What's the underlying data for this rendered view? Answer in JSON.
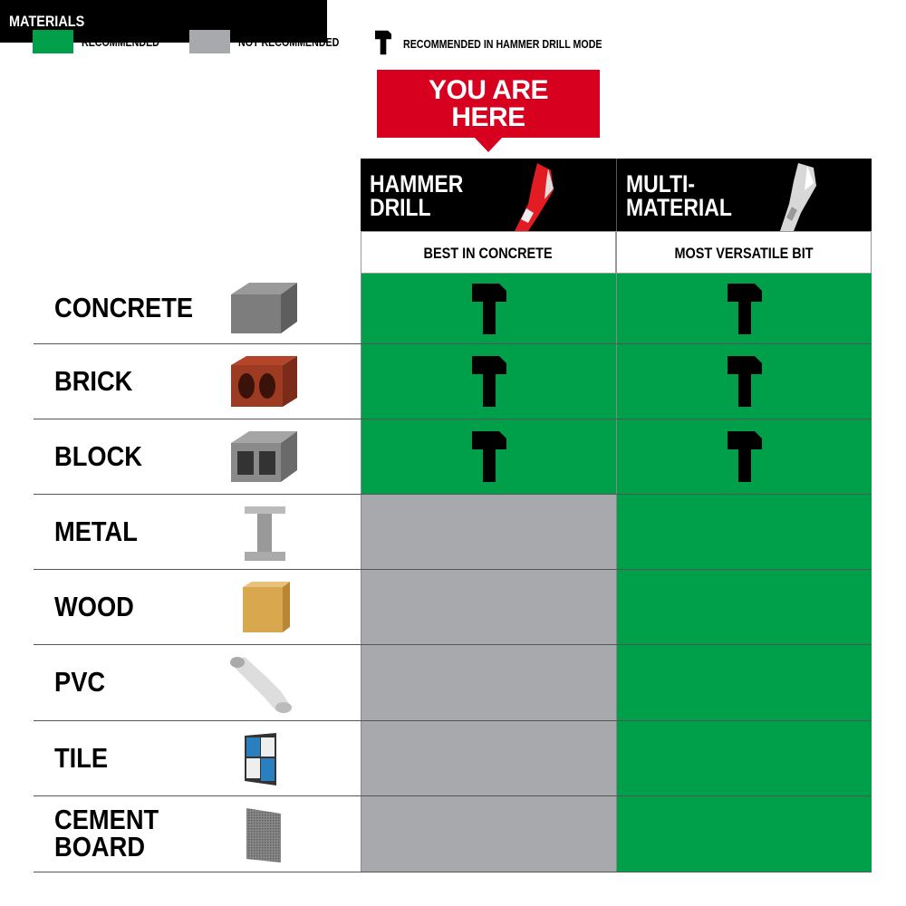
{
  "colors": {
    "recommended": "#00a04b",
    "not_recommended": "#a7a9ac",
    "accent": "#d7001e"
  },
  "legend": [
    {
      "label": "RECOMMENDED",
      "swatch": "recommended"
    },
    {
      "label": "NOT RECOMMENDED",
      "swatch": "not_recommended"
    },
    {
      "label": "RECOMMENDED IN HAMMER DRILL MODE",
      "icon": "hammer-icon"
    }
  ],
  "callout": {
    "line1": "YOU ARE",
    "line2": "HERE"
  },
  "columns": [
    {
      "title1": "HAMMER",
      "title2": "DRILL",
      "subtitle": "BEST IN CONCRETE",
      "image": "red-drill-bit"
    },
    {
      "title1": "MULTI-",
      "title2": "MATERIAL",
      "subtitle": "MOST VERSATILE BIT",
      "image": "silver-drill-bit"
    }
  ],
  "materials_header": "MATERIALS",
  "rows": [
    {
      "line1": "CONCRETE",
      "line2": "",
      "image": "concrete-block",
      "cells": [
        "hammer",
        "hammer"
      ]
    },
    {
      "line1": "BRICK",
      "line2": "",
      "image": "brick",
      "cells": [
        "hammer",
        "hammer"
      ]
    },
    {
      "line1": "BLOCK",
      "line2": "",
      "image": "cinder-block",
      "cells": [
        "hammer",
        "hammer"
      ]
    },
    {
      "line1": "METAL",
      "line2": "",
      "image": "i-beam",
      "cells": [
        "not_recommended",
        "recommended"
      ]
    },
    {
      "line1": "WOOD",
      "line2": "",
      "image": "wood-block",
      "cells": [
        "not_recommended",
        "recommended"
      ]
    },
    {
      "line1": "PVC",
      "line2": "",
      "image": "pvc-elbow",
      "cells": [
        "not_recommended",
        "recommended"
      ]
    },
    {
      "line1": "TILE",
      "line2": "",
      "image": "tile",
      "cells": [
        "not_recommended",
        "recommended"
      ]
    },
    {
      "line1": "CEMENT",
      "line2": "BOARD",
      "image": "cement-board",
      "cells": [
        "not_recommended",
        "recommended"
      ]
    }
  ]
}
